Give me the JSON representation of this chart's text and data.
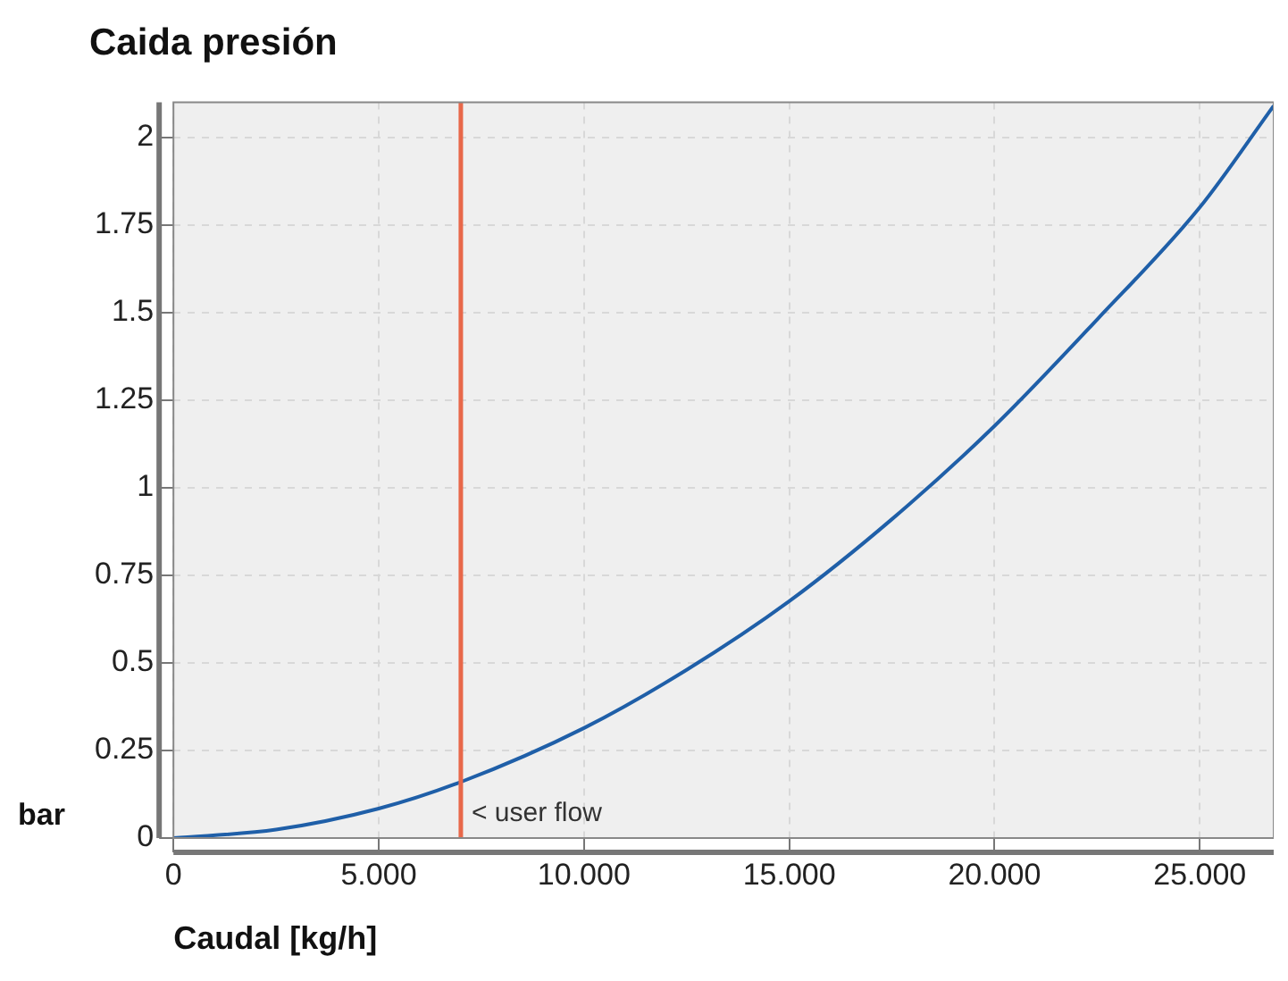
{
  "chart_data": {
    "type": "line",
    "title": "Caida presión",
    "xlabel": "Caudal [kg/h]",
    "ylabel": "bar",
    "x": [
      0,
      2.5,
      5,
      7,
      10,
      12.5,
      15,
      17.5,
      20,
      22.5,
      25,
      26.8
    ],
    "series": [
      {
        "color": "#1f5fa8",
        "values": [
          0,
          0.024,
          0.084,
          0.16,
          0.314,
          0.48,
          0.676,
          0.91,
          1.176,
          1.48,
          1.8,
          2.09
        ]
      }
    ],
    "xlim": [
      0,
      26.8
    ],
    "xticks": [
      0,
      {
        "value": 5,
        "label": "5.000"
      },
      {
        "value": 10,
        "label": "10.000"
      },
      {
        "value": 15,
        "label": "15.000"
      },
      {
        "value": 20,
        "label": "20.000"
      },
      {
        "value": 25,
        "label": "25.000"
      }
    ],
    "ylim": [
      0,
      2.1
    ],
    "yticks": [
      0,
      0.25,
      0.5,
      0.75,
      1,
      1.25,
      1.5,
      1.75,
      2
    ],
    "ref_lines": [
      {
        "axis": "x",
        "value": 7,
        "label": "< user flow",
        "color": "#e8684a"
      }
    ],
    "grid": true,
    "legend": false,
    "marker": "none",
    "line_style": "solid"
  }
}
